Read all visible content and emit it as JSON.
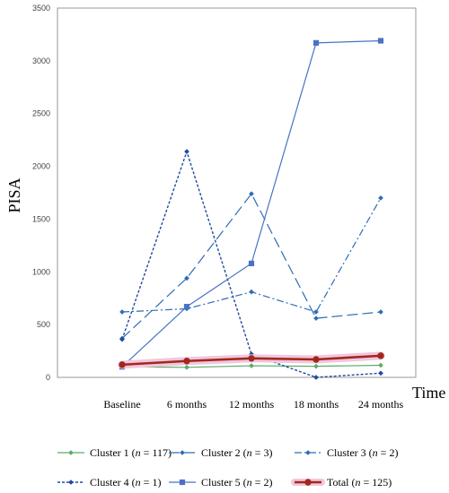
{
  "chart_data": {
    "type": "line",
    "ylabel": "PISA",
    "xlabel": "Time",
    "ylim": [
      0,
      3500
    ],
    "yticks": [
      0,
      500,
      1000,
      1500,
      2000,
      2500,
      3000,
      3500
    ],
    "categories": [
      "Baseline",
      "6 months",
      "12 months",
      "18 months",
      "24 months"
    ],
    "grid": false,
    "legend_position": "bottom",
    "series": [
      {
        "name": "Cluster 1 (n = 117)",
        "name_parts": [
          "Cluster 1 (",
          "n",
          " = 117)"
        ],
        "color": "#5aab6a",
        "dash": "solid",
        "marker": "diamond",
        "width": 1.2,
        "values": [
          100,
          95,
          110,
          105,
          115
        ]
      },
      {
        "name": "Cluster 2 (n = 3)",
        "name_parts": [
          "Cluster 2 (",
          "n",
          " = 3)"
        ],
        "color": "#2e6db4",
        "dash": "long-dash",
        "marker": "diamond",
        "width": 1.2,
        "values": [
          370,
          940,
          1740,
          560,
          620
        ]
      },
      {
        "name": "Cluster 3 (n = 2)",
        "name_parts": [
          "Cluster 3 (",
          "n",
          " = 2)"
        ],
        "color": "#2e6db4",
        "dash": "dash-dot",
        "marker": "diamond",
        "width": 1.2,
        "values": [
          620,
          650,
          810,
          620,
          1700
        ]
      },
      {
        "name": "Cluster 4 (n = 1)",
        "name_parts": [
          "Cluster 4 (",
          "n",
          " = 1)"
        ],
        "color": "#1f4aa0",
        "dash": "dotted",
        "marker": "diamond",
        "width": 1.4,
        "values": [
          360,
          2140,
          220,
          0,
          40
        ]
      },
      {
        "name": "Cluster 5 (n = 2)",
        "name_parts": [
          "Cluster 5 (",
          "n",
          " = 2)"
        ],
        "color": "#4a72c4",
        "dash": "solid",
        "marker": "square",
        "width": 1.2,
        "values": [
          100,
          670,
          1080,
          3170,
          3190
        ]
      },
      {
        "name": "Total (n = 125)",
        "name_parts": [
          "Total (",
          "n",
          " = 125)"
        ],
        "color": "#a0281e",
        "dash": "solid",
        "marker": "circle",
        "width": 2.6,
        "highlight": "#f2c6dc",
        "values": [
          120,
          155,
          180,
          170,
          205
        ]
      }
    ]
  }
}
